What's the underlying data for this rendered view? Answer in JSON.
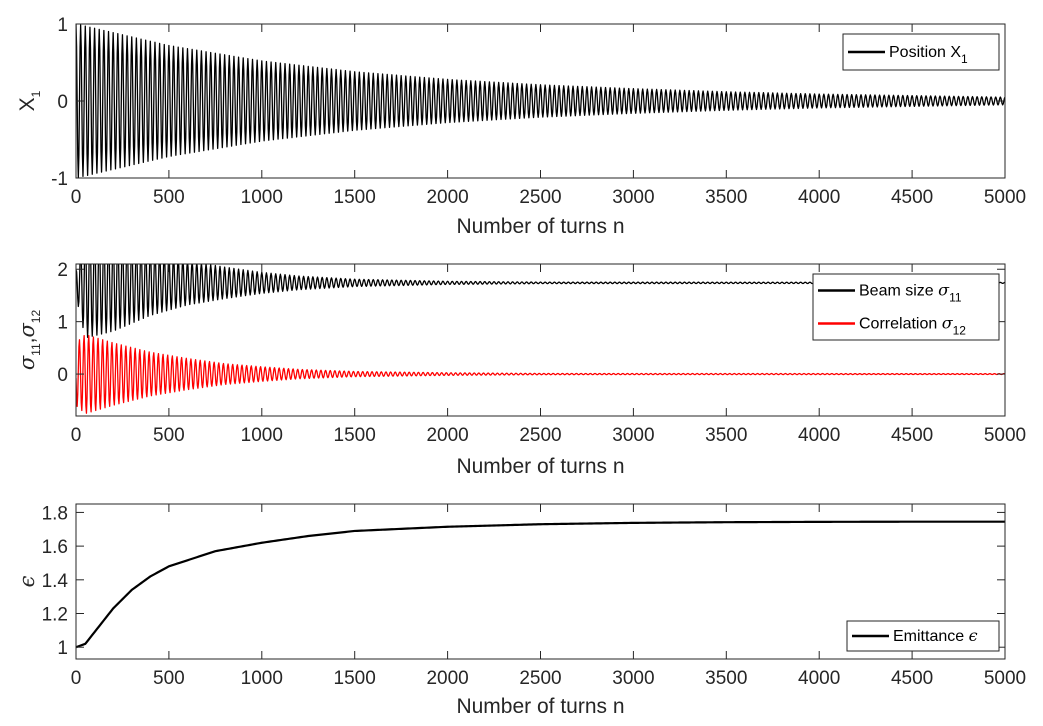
{
  "chart_data": [
    {
      "type": "line",
      "title": "",
      "xlabel": "Number of turns n",
      "ylabel_parts": [
        {
          "t": "X",
          "style": "normal"
        },
        {
          "t": "1",
          "style": "sub"
        }
      ],
      "xlim": [
        0,
        5000
      ],
      "ylim": [
        -1,
        1
      ],
      "xticks": [
        0,
        500,
        1000,
        1500,
        2000,
        2500,
        3000,
        3500,
        4000,
        4500,
        5000
      ],
      "xtick_labels": [
        "0",
        "500",
        "1000",
        "1500",
        "2000",
        "2500",
        "3000",
        "3500",
        "4000",
        "4500",
        "5000"
      ],
      "yticks": [
        -1,
        0,
        1
      ],
      "ytick_labels": [
        "-1",
        "0",
        "1"
      ],
      "grid": false,
      "legend_position": "top-right",
      "series": [
        {
          "name": "Position X1",
          "legend_parts": [
            {
              "t": "Position X",
              "style": "normal"
            },
            {
              "t": "1",
              "style": "sub"
            }
          ],
          "color": "#000000",
          "kind": "damped-oscillation",
          "center": 0,
          "envelope_n": [
            0,
            500,
            1000,
            1500,
            2000,
            2500,
            3000,
            3500,
            4000,
            4500,
            5000
          ],
          "envelope_amplitude": [
            1.0,
            0.72,
            0.52,
            0.38,
            0.28,
            0.21,
            0.16,
            0.12,
            0.09,
            0.07,
            0.05
          ],
          "oscillations_per_1000_turns": 40
        }
      ]
    },
    {
      "type": "line",
      "title": "",
      "xlabel": "Number of turns n",
      "ylabel_parts": [
        {
          "t": "σ",
          "style": "greek"
        },
        {
          "t": "11",
          "style": "sub"
        },
        {
          "t": ",",
          "style": "normal"
        },
        {
          "t": "σ",
          "style": "greek"
        },
        {
          "t": "12",
          "style": "sub"
        }
      ],
      "xlim": [
        0,
        5000
      ],
      "ylim": [
        -0.8,
        2.1
      ],
      "xticks": [
        0,
        500,
        1000,
        1500,
        2000,
        2500,
        3000,
        3500,
        4000,
        4500,
        5000
      ],
      "xtick_labels": [
        "0",
        "500",
        "1000",
        "1500",
        "2000",
        "2500",
        "3000",
        "3500",
        "4000",
        "4500",
        "5000"
      ],
      "yticks": [
        0,
        1,
        2
      ],
      "ytick_labels": [
        "0",
        "1",
        "2"
      ],
      "grid": false,
      "legend_position": "top-right",
      "series": [
        {
          "name": "Beam size σ11",
          "legend_parts": [
            {
              "t": "Beam size ",
              "style": "normal"
            },
            {
              "t": "σ",
              "style": "greek"
            },
            {
              "t": "11",
              "style": "sub"
            }
          ],
          "color": "#000000",
          "kind": "damped-oscillation",
          "center": 1.74,
          "envelope_n": [
            0,
            50,
            200,
            400,
            600,
            800,
            1000,
            1200,
            1500,
            2000,
            2500,
            5000
          ],
          "envelope_amplitude": [
            0.25,
            1.05,
            0.92,
            0.62,
            0.42,
            0.3,
            0.2,
            0.13,
            0.07,
            0.03,
            0.015,
            0.01
          ],
          "oscillations_per_1000_turns": 40
        },
        {
          "name": "Correlation σ12",
          "legend_parts": [
            {
              "t": "Correlation ",
              "style": "normal"
            },
            {
              "t": "σ",
              "style": "greek"
            },
            {
              "t": "12",
              "style": "sub"
            }
          ],
          "color": "#ff0000",
          "kind": "damped-oscillation",
          "center": 0,
          "envelope_n": [
            0,
            50,
            200,
            400,
            600,
            800,
            1000,
            1200,
            1500,
            2000,
            2500,
            5000
          ],
          "envelope_amplitude": [
            0.6,
            0.76,
            0.6,
            0.42,
            0.3,
            0.2,
            0.14,
            0.09,
            0.05,
            0.025,
            0.012,
            0.008
          ],
          "oscillations_per_1000_turns": 40
        }
      ]
    },
    {
      "type": "line",
      "title": "",
      "xlabel": "Number of turns n",
      "ylabel_parts": [
        {
          "t": "ϵ",
          "style": "greek"
        }
      ],
      "xlim": [
        0,
        5000
      ],
      "ylim": [
        0.93,
        1.85
      ],
      "xticks": [
        0,
        500,
        1000,
        1500,
        2000,
        2500,
        3000,
        3500,
        4000,
        4500,
        5000
      ],
      "xtick_labels": [
        "0",
        "500",
        "1000",
        "1500",
        "2000",
        "2500",
        "3000",
        "3500",
        "4000",
        "4500",
        "5000"
      ],
      "yticks": [
        1,
        1.2,
        1.4,
        1.6,
        1.8
      ],
      "ytick_labels": [
        "1",
        "1.2",
        "1.4",
        "1.6",
        "1.8"
      ],
      "grid": false,
      "legend_position": "bottom-right",
      "series": [
        {
          "name": "Emittance ϵ",
          "legend_parts": [
            {
              "t": "Emittance ",
              "style": "normal"
            },
            {
              "t": "ϵ",
              "style": "greek"
            }
          ],
          "color": "#000000",
          "kind": "curve",
          "x": [
            0,
            50,
            100,
            200,
            300,
            400,
            500,
            750,
            1000,
            1250,
            1500,
            2000,
            2500,
            3000,
            3500,
            4000,
            4500,
            5000
          ],
          "y": [
            1.0,
            1.02,
            1.09,
            1.23,
            1.34,
            1.42,
            1.48,
            1.57,
            1.62,
            1.66,
            1.69,
            1.715,
            1.73,
            1.738,
            1.742,
            1.744,
            1.745,
            1.745
          ]
        }
      ]
    }
  ]
}
